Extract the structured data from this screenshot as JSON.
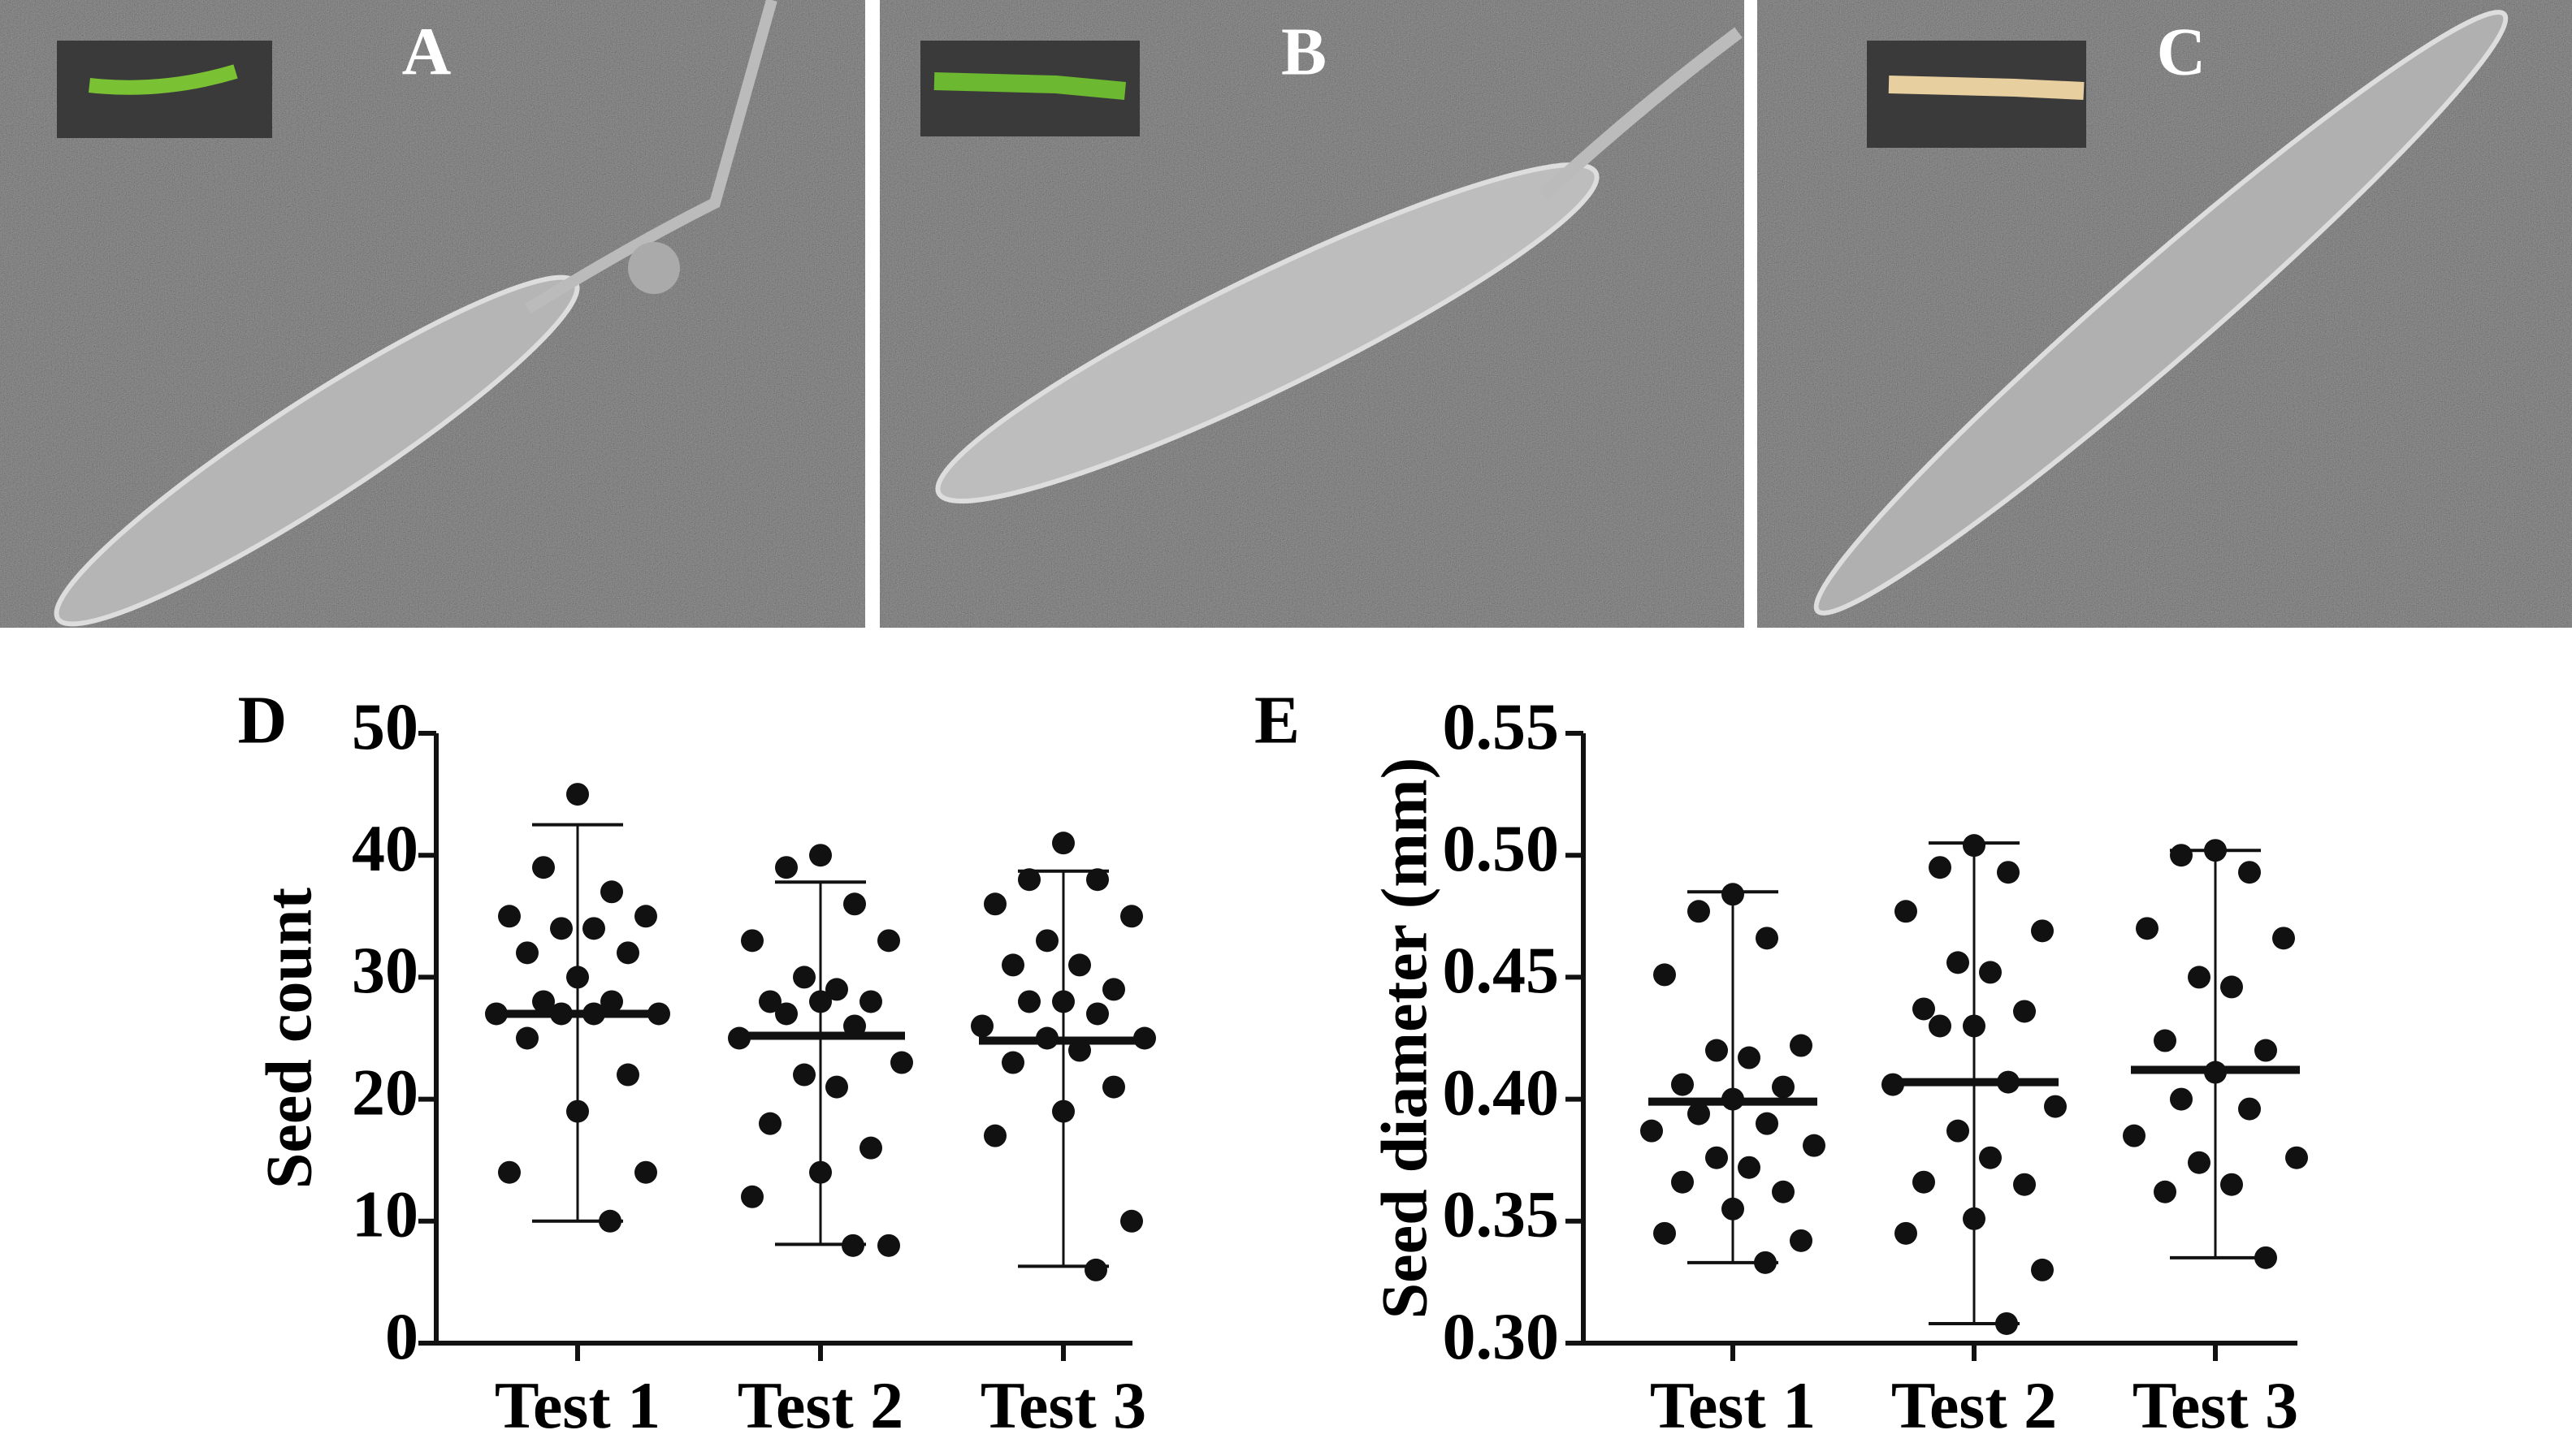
{
  "panels": [
    {
      "label": "A"
    },
    {
      "label": "B"
    },
    {
      "label": "C"
    }
  ],
  "chart_data": [
    {
      "type": "dot",
      "panel_label": "D",
      "ylabel": "Seed count",
      "categories": [
        "Test 1",
        "Test 2",
        "Test 3"
      ],
      "values": [
        [
          45,
          39,
          37,
          35,
          35,
          34,
          34,
          32,
          32,
          30,
          28,
          28,
          27,
          27,
          27,
          27,
          25,
          22,
          19,
          14,
          14,
          10
        ],
        [
          40,
          39,
          36,
          33,
          33,
          30,
          29,
          28,
          28,
          28,
          27,
          26,
          25,
          23,
          22,
          21,
          18,
          16,
          14,
          12,
          8,
          8
        ],
        [
          41,
          38,
          38,
          36,
          35,
          33,
          31,
          31,
          29,
          28,
          28,
          27,
          26,
          25,
          25,
          24,
          23,
          21,
          19,
          17,
          10,
          6
        ]
      ],
      "medians": [
        27,
        25.2,
        24.8
      ],
      "lows": [
        10,
        8.1,
        6.3
      ],
      "highs": [
        42.5,
        37.8,
        38.7
      ],
      "color": "#111111",
      "ylim": [
        0,
        50
      ],
      "yticks": [
        0,
        10,
        20,
        30,
        40,
        50
      ]
    },
    {
      "type": "dot",
      "panel_label": "E",
      "ylabel": "Seed diameter (mm)",
      "categories": [
        "Test 1",
        "Test 2",
        "Test 3"
      ],
      "values": [
        [
          0.484,
          0.477,
          0.466,
          0.451,
          0.422,
          0.42,
          0.417,
          0.406,
          0.405,
          0.4,
          0.394,
          0.39,
          0.387,
          0.381,
          0.376,
          0.372,
          0.366,
          0.362,
          0.355,
          0.345,
          0.342,
          0.333
        ],
        [
          0.504,
          0.495,
          0.493,
          0.477,
          0.469,
          0.456,
          0.452,
          0.437,
          0.436,
          0.43,
          0.43,
          0.407,
          0.406,
          0.397,
          0.387,
          0.376,
          0.366,
          0.365,
          0.351,
          0.345,
          0.33,
          0.308
        ],
        [
          0.502,
          0.5,
          0.493,
          0.47,
          0.466,
          0.45,
          0.446,
          0.424,
          0.42,
          0.411,
          0.4,
          0.396,
          0.385,
          0.376,
          0.374,
          0.365,
          0.362,
          0.335
        ]
      ],
      "medians": [
        0.399,
        0.407,
        0.412
      ],
      "lows": [
        0.333,
        0.308,
        0.335
      ],
      "highs": [
        0.485,
        0.505,
        0.502
      ],
      "color": "#111111",
      "ylim": [
        0.3,
        0.55
      ],
      "yticks": [
        {
          "value": 0.3,
          "label": "0.30"
        },
        0.35,
        {
          "value": 0.4,
          "label": "0.40"
        },
        0.45,
        {
          "value": 0.5,
          "label": "0.50"
        },
        0.55
      ]
    }
  ]
}
